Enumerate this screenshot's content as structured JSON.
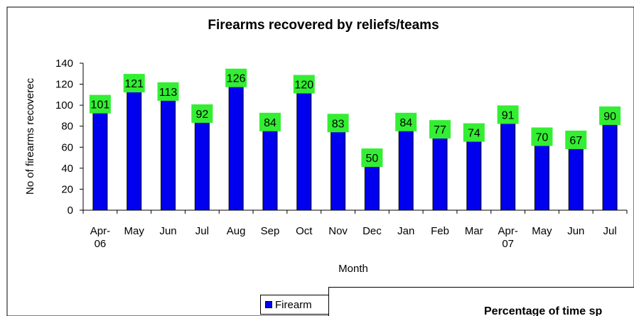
{
  "chart_data": {
    "type": "bar",
    "title": "Firearms recovered by reliefs/teams",
    "xlabel": "Month",
    "ylabel": "No of firearms recoverec",
    "ylim": [
      0,
      140
    ],
    "yticks": [
      0,
      20,
      40,
      60,
      80,
      100,
      120,
      140
    ],
    "categories": [
      [
        "Apr-",
        "06"
      ],
      [
        "May"
      ],
      [
        "Jun"
      ],
      [
        "Jul"
      ],
      [
        "Aug"
      ],
      [
        "Sep"
      ],
      [
        "Oct"
      ],
      [
        "Nov"
      ],
      [
        "Dec"
      ],
      [
        "Jan"
      ],
      [
        "Feb"
      ],
      [
        "Mar"
      ],
      [
        "Apr-",
        "07"
      ],
      [
        "May"
      ],
      [
        "Jun"
      ],
      [
        "Jul"
      ]
    ],
    "series": [
      {
        "name": "Firearm",
        "values": [
          101,
          121,
          113,
          92,
          126,
          84,
          120,
          83,
          50,
          84,
          77,
          74,
          91,
          70,
          67,
          90
        ]
      }
    ],
    "grid": false,
    "legend_position": "bottom",
    "colors": {
      "bar": "#0000ee",
      "bar_edge": "#000000",
      "label_bg": "#33ee33",
      "border": "#000000"
    }
  },
  "overlay_chart": {
    "title": "Percentage of time sp"
  }
}
